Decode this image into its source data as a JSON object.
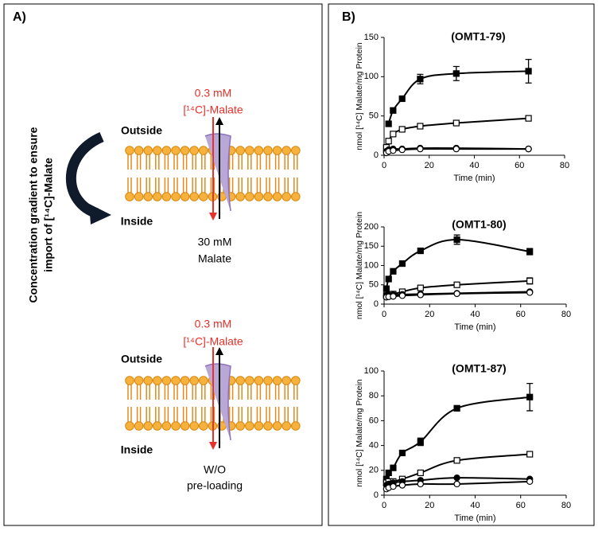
{
  "panel_a": {
    "label": "A)",
    "side_label": [
      "Concentration gradient to ensure",
      "import of [¹⁴C]-Malate"
    ],
    "top": {
      "conc": "0.3 mM",
      "substrate": "[¹⁴C]-Malate",
      "outside": "Outside",
      "inside": "Inside",
      "bottom_lines": [
        "30 mM",
        "Malate"
      ]
    },
    "bottom": {
      "conc": "0.3 mM",
      "substrate": "[¹⁴C]-Malate",
      "outside": "Outside",
      "inside": "Inside",
      "bottom_lines": [
        "W/O",
        "pre-loading"
      ]
    }
  },
  "panel_b": {
    "label": "B)"
  },
  "chart_data": [
    {
      "type": "scatter",
      "title": "(OMT1-79)",
      "x_label": "Time (min)",
      "y_label": "nmol [¹⁴C] Malate/mg Protein",
      "xlim": [
        0,
        80
      ],
      "xticks": [
        0,
        20,
        40,
        60,
        80
      ],
      "ylim": [
        0,
        150
      ],
      "yticks": [
        0,
        50,
        100,
        150
      ],
      "series": [
        {
          "marker": "square-filled",
          "color": "#000000",
          "x": [
            2,
            4,
            8,
            16,
            32,
            64
          ],
          "values": [
            40,
            57,
            72,
            97,
            104,
            107
          ],
          "errors": [
            null,
            null,
            null,
            6,
            9,
            15
          ]
        },
        {
          "marker": "square-open",
          "color": "#000000",
          "x": [
            1,
            2,
            4,
            8,
            16,
            32,
            64
          ],
          "values": [
            10,
            18,
            27,
            33,
            37,
            41,
            47
          ]
        },
        {
          "marker": "circle-filled",
          "color": "#000000",
          "x": [
            1,
            2,
            4,
            8,
            16,
            32,
            64
          ],
          "values": [
            5,
            7,
            8,
            8,
            9,
            9,
            8
          ]
        },
        {
          "marker": "circle-open",
          "color": "#000000",
          "x": [
            1,
            2,
            4,
            8,
            16,
            32,
            64
          ],
          "values": [
            3,
            5,
            6,
            7,
            8,
            8,
            8
          ]
        }
      ]
    },
    {
      "type": "scatter",
      "title": "(OMT1-80)",
      "x_label": "Time (min)",
      "y_label": "nmol [¹⁴C] Malate/mg Protein",
      "xlim": [
        0,
        80
      ],
      "xticks": [
        0,
        20,
        40,
        60,
        80
      ],
      "ylim": [
        0,
        200
      ],
      "yticks": [
        0,
        50,
        100,
        150,
        200
      ],
      "series": [
        {
          "marker": "square-filled",
          "color": "#000000",
          "x": [
            1,
            2,
            4,
            8,
            16,
            32,
            64
          ],
          "values": [
            40,
            65,
            85,
            105,
            138,
            167,
            136
          ],
          "errors": [
            null,
            null,
            null,
            null,
            null,
            12,
            8
          ]
        },
        {
          "marker": "square-open",
          "color": "#000000",
          "x": [
            1,
            2,
            4,
            8,
            16,
            32,
            64
          ],
          "values": [
            22,
            24,
            26,
            32,
            42,
            50,
            60
          ],
          "errors": [
            null,
            null,
            null,
            null,
            null,
            null,
            8
          ]
        },
        {
          "marker": "circle-filled",
          "color": "#000000",
          "x": [
            1,
            2,
            4,
            8,
            16,
            32,
            64
          ],
          "values": [
            22,
            23,
            24,
            25,
            26,
            28,
            32
          ]
        },
        {
          "marker": "circle-open",
          "color": "#000000",
          "x": [
            1,
            2,
            4,
            8,
            16,
            32,
            64
          ],
          "values": [
            18,
            19,
            20,
            22,
            24,
            27,
            30
          ]
        }
      ]
    },
    {
      "type": "scatter",
      "title": "(OMT1-87)",
      "x_label": "Time (min)",
      "y_label": "nmol [¹⁴C] Malate/mg Protein",
      "xlim": [
        0,
        80
      ],
      "xticks": [
        0,
        20,
        40,
        60,
        80
      ],
      "ylim": [
        0,
        100
      ],
      "yticks": [
        0,
        20,
        40,
        60,
        80,
        100
      ],
      "series": [
        {
          "marker": "square-filled",
          "color": "#000000",
          "x": [
            1,
            2,
            4,
            8,
            16,
            32,
            64
          ],
          "values": [
            13,
            18,
            22,
            34,
            43,
            70,
            79
          ],
          "errors": [
            null,
            null,
            null,
            null,
            3,
            2,
            11
          ]
        },
        {
          "marker": "square-open",
          "color": "#000000",
          "x": [
            1,
            2,
            4,
            8,
            16,
            32,
            64
          ],
          "values": [
            10,
            11,
            11,
            13,
            18,
            28,
            33
          ]
        },
        {
          "marker": "circle-filled",
          "color": "#000000",
          "x": [
            1,
            2,
            4,
            8,
            16,
            32,
            64
          ],
          "values": [
            8,
            9,
            10,
            11,
            12,
            14,
            13
          ]
        },
        {
          "marker": "circle-open",
          "color": "#000000",
          "x": [
            1,
            2,
            4,
            8,
            16,
            32,
            64
          ],
          "values": [
            5,
            6,
            7,
            8,
            9,
            9,
            11
          ]
        }
      ]
    }
  ]
}
